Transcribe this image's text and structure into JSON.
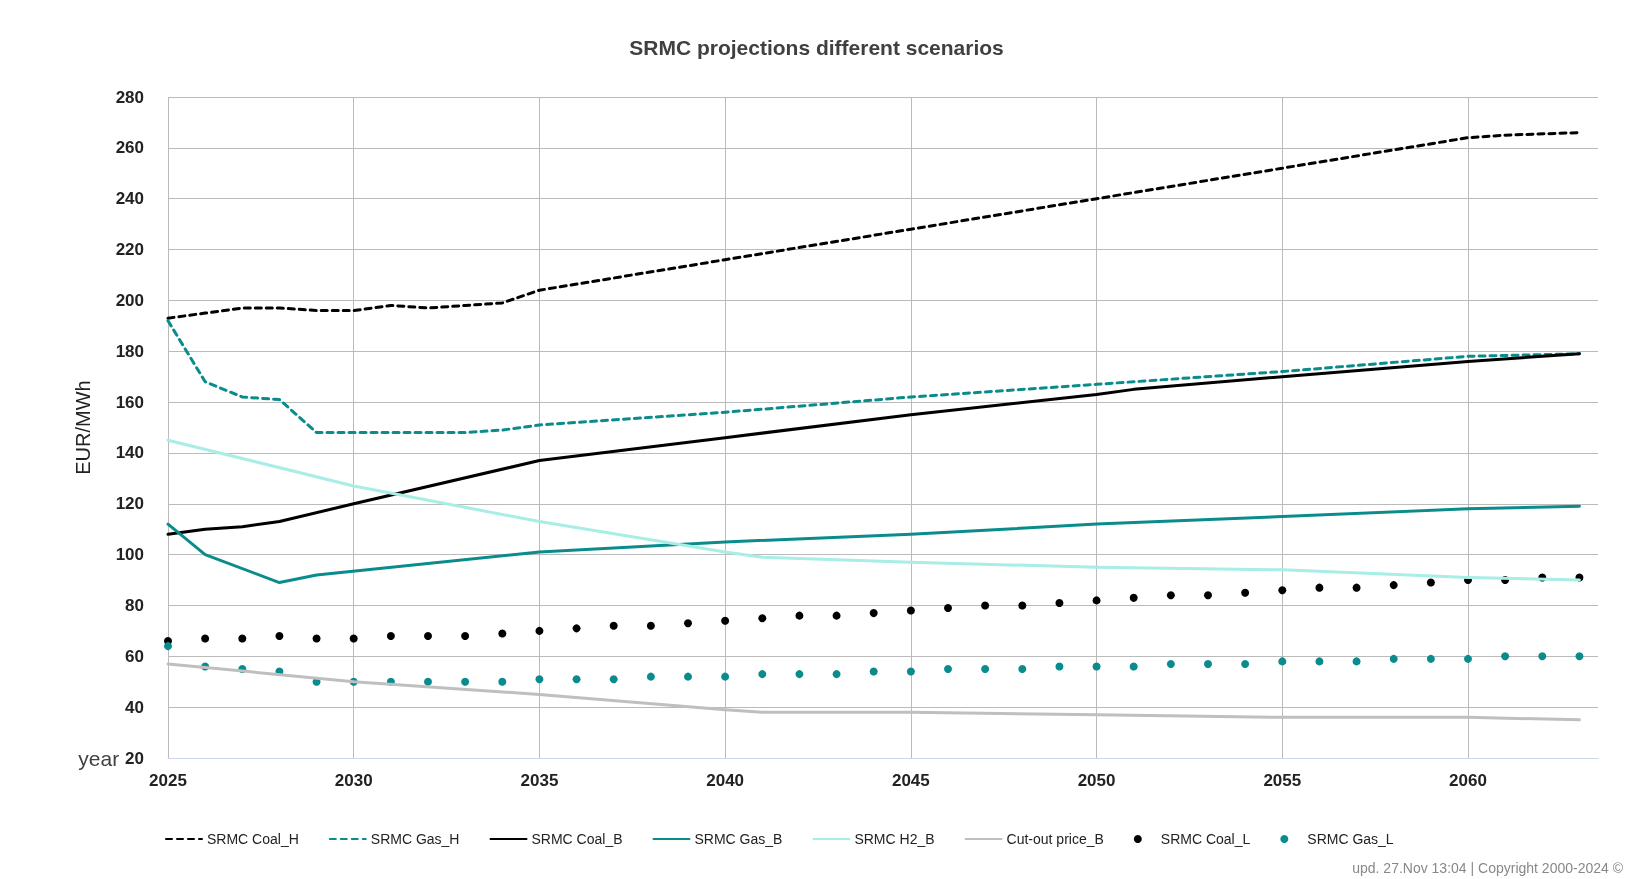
{
  "chart_data": {
    "type": "line",
    "title": "SRMC projections different scenarios",
    "xlabel": "year",
    "ylabel": "EUR/MWh",
    "xlim": [
      2025,
      2063.5
    ],
    "xticks": [
      2025,
      2030,
      2035,
      2040,
      2045,
      2050,
      2055,
      2060
    ],
    "ylim": [
      20,
      280
    ],
    "yticks": [
      20,
      40,
      60,
      80,
      100,
      120,
      140,
      160,
      180,
      200,
      220,
      240,
      260,
      280
    ],
    "grid": true,
    "legend": "bottom",
    "marker": "none",
    "annotations": [
      "upd. 27.Nov 13:04 | Copyright 2000-2024 ©"
    ],
    "series": [
      {
        "name": "SRMC Coal_H",
        "color": "#000000",
        "line_style": "dashed",
        "x": [
          2025,
          2026,
          2027,
          2028,
          2029,
          2030,
          2031,
          2032,
          2033,
          2034,
          2035,
          2040,
          2045,
          2050,
          2055,
          2060,
          2061,
          2063
        ],
        "values": [
          193,
          195,
          197,
          197,
          196,
          196,
          198,
          197,
          198,
          199,
          204,
          216,
          228,
          240,
          252,
          264,
          265,
          266
        ]
      },
      {
        "name": "SRMC Gas_H",
        "color": "#0a8c8c",
        "line_style": "dashed",
        "x": [
          2025,
          2026,
          2027,
          2028,
          2029,
          2030,
          2033,
          2034,
          2035,
          2040,
          2045,
          2050,
          2055,
          2060,
          2063
        ],
        "values": [
          192,
          168,
          162,
          161,
          148,
          148,
          148,
          149,
          151,
          156,
          162,
          167,
          172,
          178,
          179
        ]
      },
      {
        "name": "SRMC Coal_B",
        "color": "#000000",
        "line_style": "solid",
        "x": [
          2025,
          2026,
          2027,
          2028,
          2030,
          2035,
          2040,
          2045,
          2050,
          2051,
          2055,
          2060,
          2063
        ],
        "values": [
          108,
          110,
          111,
          113,
          120,
          137,
          146,
          155,
          163,
          165,
          170,
          176,
          179
        ]
      },
      {
        "name": "SRMC Gas_B",
        "color": "#0a8c8c",
        "line_style": "solid",
        "x": [
          2025,
          2026,
          2028,
          2029,
          2035,
          2040,
          2045,
          2050,
          2055,
          2060,
          2063
        ],
        "values": [
          112,
          100,
          89,
          92,
          101,
          105,
          108,
          112,
          115,
          118,
          119
        ]
      },
      {
        "name": "SRMC H2_B",
        "color": "#a8ede6",
        "line_style": "solid",
        "x": [
          2025,
          2030,
          2035,
          2040,
          2041,
          2045,
          2050,
          2055,
          2060,
          2063
        ],
        "values": [
          145,
          127,
          113,
          101,
          99,
          97,
          95,
          94,
          91,
          90
        ]
      },
      {
        "name": "Cut-out price_B",
        "color": "#bfbfbf",
        "line_style": "solid",
        "x": [
          2025,
          2030,
          2035,
          2040,
          2041,
          2045,
          2050,
          2055,
          2060,
          2063
        ],
        "values": [
          57,
          50,
          45,
          39,
          38,
          38,
          37,
          36,
          36,
          35
        ]
      },
      {
        "name": "SRMC Coal_L",
        "type": "scatter",
        "marker": "circle",
        "color": "#000000",
        "x": [
          2025,
          2026,
          2027,
          2028,
          2029,
          2030,
          2031,
          2032,
          2033,
          2034,
          2035,
          2036,
          2037,
          2038,
          2039,
          2040,
          2041,
          2042,
          2043,
          2044,
          2045,
          2046,
          2047,
          2048,
          2049,
          2050,
          2051,
          2052,
          2053,
          2054,
          2055,
          2056,
          2057,
          2058,
          2059,
          2060,
          2061,
          2062,
          2063
        ],
        "values": [
          66,
          67,
          67,
          68,
          67,
          67,
          68,
          68,
          68,
          69,
          70,
          71,
          72,
          72,
          73,
          74,
          75,
          76,
          76,
          77,
          78,
          79,
          80,
          80,
          81,
          82,
          83,
          84,
          84,
          85,
          86,
          87,
          87,
          88,
          89,
          90,
          90,
          91,
          91
        ]
      },
      {
        "name": "SRMC Gas_L",
        "type": "scatter",
        "marker": "circle",
        "color": "#0a8c8c",
        "x": [
          2025,
          2026,
          2027,
          2028,
          2029,
          2030,
          2031,
          2032,
          2033,
          2034,
          2035,
          2036,
          2037,
          2038,
          2039,
          2040,
          2041,
          2042,
          2043,
          2044,
          2045,
          2046,
          2047,
          2048,
          2049,
          2050,
          2051,
          2052,
          2053,
          2054,
          2055,
          2056,
          2057,
          2058,
          2059,
          2060,
          2061,
          2062,
          2063
        ],
        "values": [
          64,
          56,
          55,
          54,
          50,
          50,
          50,
          50,
          50,
          50,
          51,
          51,
          51,
          52,
          52,
          52,
          53,
          53,
          53,
          54,
          54,
          55,
          55,
          55,
          56,
          56,
          56,
          57,
          57,
          57,
          58,
          58,
          58,
          59,
          59,
          59,
          60,
          60,
          60
        ]
      }
    ]
  }
}
